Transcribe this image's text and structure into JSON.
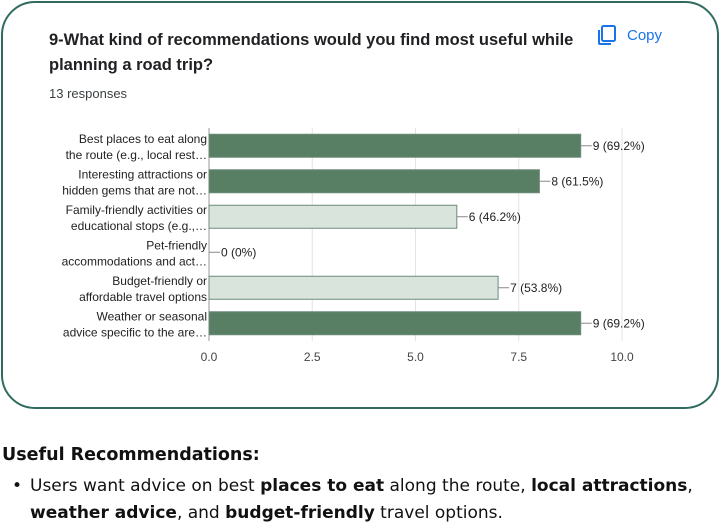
{
  "question": {
    "title": "9-What kind of recommendations would you find most useful while planning a road trip?",
    "responses": "13 responses",
    "copy_label": "Copy",
    "copy_icon": "copy-icon"
  },
  "chart_data": {
    "type": "bar",
    "orientation": "horizontal",
    "categories": [
      [
        "Best places to eat along",
        "the route (e.g., local rest…"
      ],
      [
        "Interesting attractions or",
        "hidden gems that are not…"
      ],
      [
        "Family-friendly activities or",
        "educational stops (e.g.,…"
      ],
      [
        "Pet-friendly",
        "accommodations and act…"
      ],
      [
        "Budget-friendly or",
        "affordable travel options"
      ],
      [
        "Weather or seasonal",
        "advice specific to the are…"
      ]
    ],
    "values": [
      9,
      8,
      6,
      0,
      7,
      9
    ],
    "value_labels": [
      "9 (69.2%)",
      "8 (61.5%)",
      "6 (46.2%)",
      "0 (0%)",
      "7 (53.8%)",
      "9 (69.2%)"
    ],
    "highlighted": [
      true,
      true,
      false,
      false,
      false,
      true
    ],
    "colors": {
      "highlight": "#587e64",
      "normal": "#d9e5dc",
      "border": "#6f8a7b",
      "grid": "#e3e3e3"
    },
    "xlim": [
      0,
      10
    ],
    "xticks": [
      "0.0",
      "2.5",
      "5.0",
      "7.5",
      "10.0"
    ],
    "grid": true
  },
  "summary": {
    "heading": "Useful Recommendations:",
    "bullet": "•",
    "segments": [
      {
        "text": "Users want advice on best ",
        "bold": false
      },
      {
        "text": "places to eat",
        "bold": true
      },
      {
        "text": " along the route, ",
        "bold": false
      },
      {
        "text": "local attractions",
        "bold": true
      },
      {
        "text": ", ",
        "bold": false
      },
      {
        "text": "weather advice",
        "bold": true
      },
      {
        "text": ", and ",
        "bold": false
      },
      {
        "text": "budget-friendly",
        "bold": true
      },
      {
        "text": " travel options.",
        "bold": false
      }
    ]
  }
}
